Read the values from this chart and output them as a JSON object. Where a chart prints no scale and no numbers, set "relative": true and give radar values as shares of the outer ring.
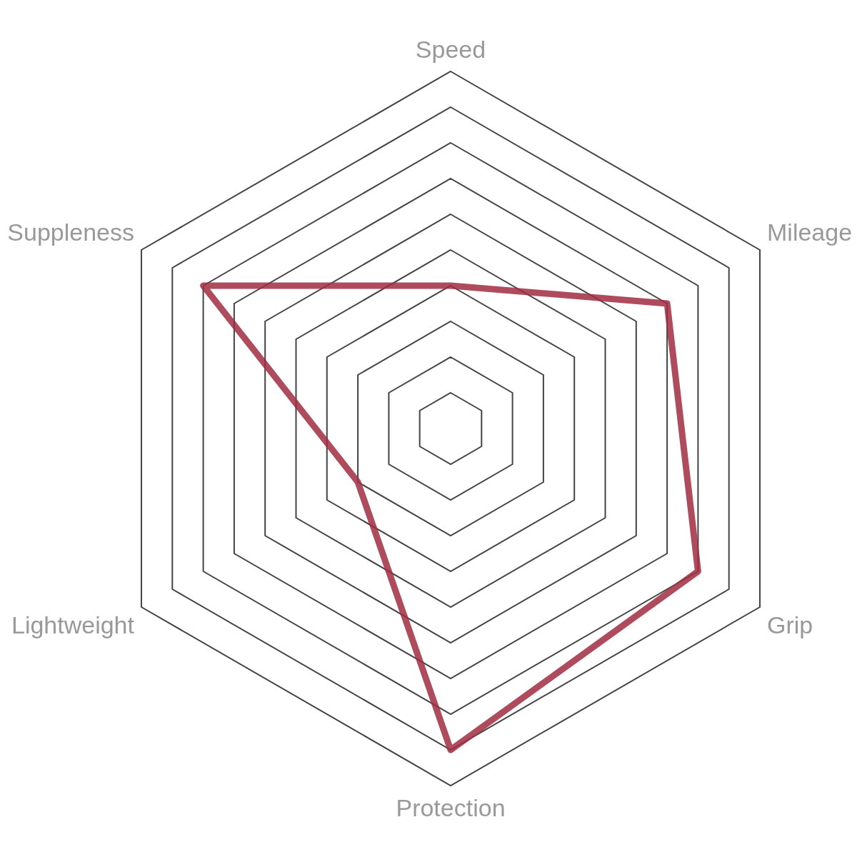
{
  "chart_data": {
    "type": "radar",
    "relative": true,
    "categories": [
      "Speed",
      "Mileage",
      "Grip",
      "Protection",
      "Lightweight",
      "Suppleness"
    ],
    "series": [
      {
        "color": "#a02c3f",
        "values": [
          0.4,
          0.7,
          0.8,
          0.9,
          0.3,
          0.8
        ]
      }
    ],
    "grid": true
  }
}
